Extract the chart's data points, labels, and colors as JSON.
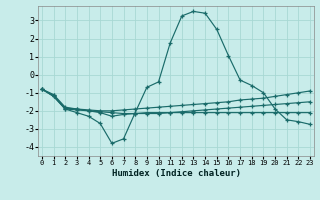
{
  "xlabel": "Humidex (Indice chaleur)",
  "background_color": "#c8ecea",
  "grid_color": "#a8d8d4",
  "line_color": "#1a6b6a",
  "xlim": [
    -0.3,
    23.3
  ],
  "ylim": [
    -4.5,
    3.8
  ],
  "yticks": [
    -4,
    -3,
    -2,
    -1,
    0,
    1,
    2,
    3
  ],
  "xticks": [
    0,
    1,
    2,
    3,
    4,
    5,
    6,
    7,
    8,
    9,
    10,
    11,
    12,
    13,
    14,
    15,
    16,
    17,
    18,
    19,
    20,
    21,
    22,
    23
  ],
  "line1_x": [
    0,
    1,
    2,
    3,
    4,
    5,
    6,
    7,
    8,
    9,
    10,
    11,
    12,
    13,
    14,
    15,
    16,
    17,
    18,
    19,
    20,
    21,
    22,
    23
  ],
  "line1_y": [
    -0.8,
    -1.2,
    -1.9,
    -2.1,
    -2.3,
    -2.7,
    -3.8,
    -3.55,
    -2.1,
    -0.7,
    -0.4,
    1.75,
    3.25,
    3.5,
    3.4,
    2.5,
    1.05,
    -0.3,
    -0.6,
    -1.0,
    -1.9,
    -2.5,
    -2.6,
    -2.75
  ],
  "line2_x": [
    0,
    1,
    2,
    3,
    4,
    5,
    6,
    7,
    8,
    9,
    10,
    11,
    12,
    13,
    14,
    15,
    16,
    17,
    18,
    19,
    20,
    21,
    22,
    23
  ],
  "line2_y": [
    -0.8,
    -1.2,
    -1.9,
    -1.95,
    -2.0,
    -2.05,
    -2.1,
    -2.15,
    -2.15,
    -2.15,
    -2.15,
    -2.1,
    -2.05,
    -2.0,
    -1.95,
    -1.9,
    -1.85,
    -1.8,
    -1.75,
    -1.7,
    -1.65,
    -1.6,
    -1.55,
    -1.5
  ],
  "line3_x": [
    0,
    1,
    2,
    3,
    4,
    5,
    6,
    7,
    8,
    9,
    10,
    11,
    12,
    13,
    14,
    15,
    16,
    17,
    18,
    19,
    20,
    21,
    22,
    23
  ],
  "line3_y": [
    -0.8,
    -1.15,
    -1.85,
    -1.9,
    -1.95,
    -2.0,
    -2.0,
    -1.95,
    -1.9,
    -1.85,
    -1.8,
    -1.75,
    -1.7,
    -1.65,
    -1.6,
    -1.55,
    -1.5,
    -1.4,
    -1.35,
    -1.3,
    -1.2,
    -1.1,
    -1.0,
    -0.9
  ],
  "line4_x": [
    0,
    1,
    2,
    3,
    4,
    5,
    6,
    7,
    8,
    9,
    10,
    11,
    12,
    13,
    14,
    15,
    16,
    17,
    18,
    19,
    20,
    21,
    22,
    23
  ],
  "line4_y": [
    -0.8,
    -1.1,
    -1.8,
    -1.9,
    -2.0,
    -2.1,
    -2.3,
    -2.2,
    -2.15,
    -2.1,
    -2.1,
    -2.1,
    -2.1,
    -2.1,
    -2.1,
    -2.1,
    -2.1,
    -2.1,
    -2.1,
    -2.1,
    -2.1,
    -2.1,
    -2.1,
    -2.1
  ]
}
